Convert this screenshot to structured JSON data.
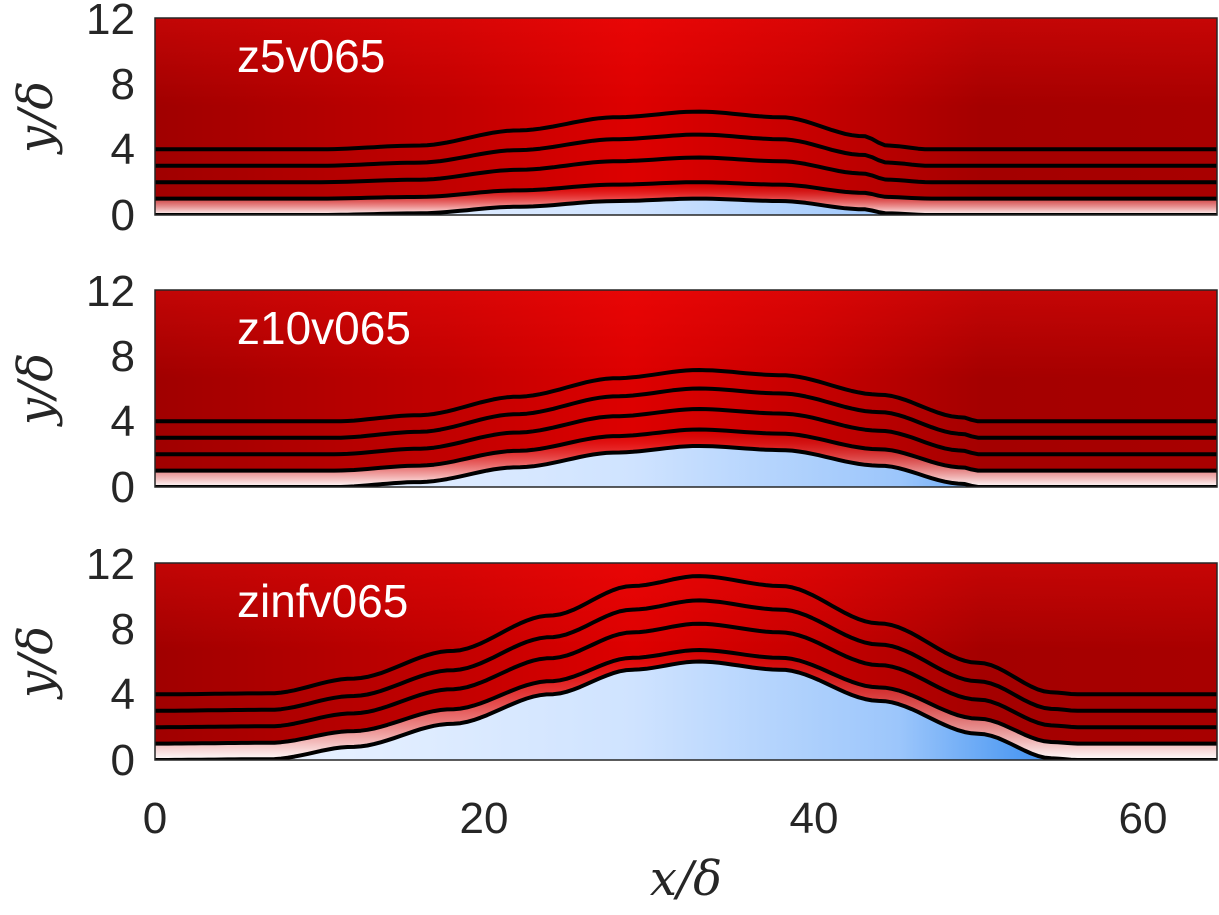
{
  "chart_data": [
    {
      "type": "contour",
      "panel_label": "z5v065",
      "xlabel": "",
      "ylabel": "y/δ",
      "xlim": [
        0,
        64.5
      ],
      "ylim": [
        0,
        12
      ],
      "yticks": [
        "0",
        "4",
        "8",
        "12"
      ],
      "xticks": [],
      "separation_profile": {
        "x": [
          0,
          10,
          16,
          22,
          28,
          33,
          38,
          43,
          44.5,
          47,
          64.5
        ],
        "y": [
          0,
          0,
          0.1,
          0.5,
          0.85,
          1.0,
          0.85,
          0.35,
          0.1,
          0,
          0
        ]
      },
      "streamline_offsets": [
        1,
        2,
        3,
        4
      ],
      "streamline_bump_gain": [
        1.0,
        1.5,
        1.9,
        2.3
      ],
      "contour_colors": {
        "freestream": "#aa0000",
        "peak": "#e00000",
        "shear": "#ffffff",
        "reverse": "#2f80e0"
      }
    },
    {
      "type": "contour",
      "panel_label": "z10v065",
      "xlabel": "",
      "ylabel": "y/δ",
      "xlim": [
        0,
        64.5
      ],
      "ylim": [
        0,
        12
      ],
      "yticks": [
        "0",
        "4",
        "8",
        "12"
      ],
      "xticks": [],
      "separation_profile": {
        "x": [
          0,
          11,
          16,
          22,
          28,
          33,
          38,
          44,
          49,
          50,
          64.5
        ],
        "y": [
          0,
          0,
          0.3,
          1.2,
          2.1,
          2.5,
          2.25,
          1.3,
          0.2,
          0,
          0
        ]
      },
      "streamline_offsets": [
        1,
        2,
        3,
        4
      ],
      "streamline_bump_gain": [
        1.0,
        1.1,
        1.2,
        1.25
      ],
      "contour_colors": {
        "freestream": "#aa0000",
        "peak": "#e00000",
        "shear": "#ffffff",
        "reverse": "#2f80e0"
      }
    },
    {
      "type": "contour",
      "panel_label": "zinfv065",
      "xlabel": "x/δ",
      "ylabel": "y/δ",
      "xlim": [
        0,
        64.5
      ],
      "ylim": [
        0,
        12
      ],
      "yticks": [
        "0",
        "4",
        "8",
        "12"
      ],
      "xticks": [
        "0",
        "20",
        "40",
        "60"
      ],
      "separation_profile": {
        "x": [
          0,
          7,
          12,
          18,
          24,
          29,
          33,
          38,
          44,
          50,
          54.5,
          56,
          64.5
        ],
        "y": [
          0,
          0.05,
          0.8,
          2.2,
          4.0,
          5.5,
          6.0,
          5.5,
          3.6,
          1.6,
          0.1,
          0,
          0
        ]
      },
      "streamline_offsets": [
        1,
        2,
        3,
        4
      ],
      "streamline_bump_gain": [
        0.95,
        1.05,
        1.12,
        1.2
      ],
      "contour_colors": {
        "freestream": "#aa0000",
        "peak": "#e00000",
        "shear": "#ffffff",
        "reverse": "#2f80e0"
      }
    }
  ]
}
